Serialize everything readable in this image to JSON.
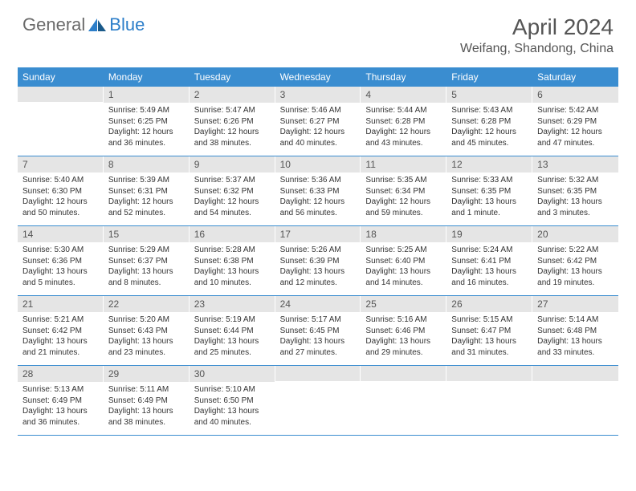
{
  "logo": {
    "general": "General",
    "blue": "Blue"
  },
  "title": "April 2024",
  "location": "Weifang, Shandong, China",
  "colors": {
    "header_bg": "#3a8dd0",
    "header_text": "#ffffff",
    "daynum_bg": "#e5e5e5",
    "text": "#333333",
    "divider": "#3a8dd0",
    "logo_gray": "#6a6a6a",
    "logo_blue": "#2c7ec9"
  },
  "day_headers": [
    "Sunday",
    "Monday",
    "Tuesday",
    "Wednesday",
    "Thursday",
    "Friday",
    "Saturday"
  ],
  "weeks": [
    [
      {
        "day": "",
        "sunrise": "",
        "sunset": "",
        "daylight": ""
      },
      {
        "day": "1",
        "sunrise": "Sunrise: 5:49 AM",
        "sunset": "Sunset: 6:25 PM",
        "daylight": "Daylight: 12 hours and 36 minutes."
      },
      {
        "day": "2",
        "sunrise": "Sunrise: 5:47 AM",
        "sunset": "Sunset: 6:26 PM",
        "daylight": "Daylight: 12 hours and 38 minutes."
      },
      {
        "day": "3",
        "sunrise": "Sunrise: 5:46 AM",
        "sunset": "Sunset: 6:27 PM",
        "daylight": "Daylight: 12 hours and 40 minutes."
      },
      {
        "day": "4",
        "sunrise": "Sunrise: 5:44 AM",
        "sunset": "Sunset: 6:28 PM",
        "daylight": "Daylight: 12 hours and 43 minutes."
      },
      {
        "day": "5",
        "sunrise": "Sunrise: 5:43 AM",
        "sunset": "Sunset: 6:28 PM",
        "daylight": "Daylight: 12 hours and 45 minutes."
      },
      {
        "day": "6",
        "sunrise": "Sunrise: 5:42 AM",
        "sunset": "Sunset: 6:29 PM",
        "daylight": "Daylight: 12 hours and 47 minutes."
      }
    ],
    [
      {
        "day": "7",
        "sunrise": "Sunrise: 5:40 AM",
        "sunset": "Sunset: 6:30 PM",
        "daylight": "Daylight: 12 hours and 50 minutes."
      },
      {
        "day": "8",
        "sunrise": "Sunrise: 5:39 AM",
        "sunset": "Sunset: 6:31 PM",
        "daylight": "Daylight: 12 hours and 52 minutes."
      },
      {
        "day": "9",
        "sunrise": "Sunrise: 5:37 AM",
        "sunset": "Sunset: 6:32 PM",
        "daylight": "Daylight: 12 hours and 54 minutes."
      },
      {
        "day": "10",
        "sunrise": "Sunrise: 5:36 AM",
        "sunset": "Sunset: 6:33 PM",
        "daylight": "Daylight: 12 hours and 56 minutes."
      },
      {
        "day": "11",
        "sunrise": "Sunrise: 5:35 AM",
        "sunset": "Sunset: 6:34 PM",
        "daylight": "Daylight: 12 hours and 59 minutes."
      },
      {
        "day": "12",
        "sunrise": "Sunrise: 5:33 AM",
        "sunset": "Sunset: 6:35 PM",
        "daylight": "Daylight: 13 hours and 1 minute."
      },
      {
        "day": "13",
        "sunrise": "Sunrise: 5:32 AM",
        "sunset": "Sunset: 6:35 PM",
        "daylight": "Daylight: 13 hours and 3 minutes."
      }
    ],
    [
      {
        "day": "14",
        "sunrise": "Sunrise: 5:30 AM",
        "sunset": "Sunset: 6:36 PM",
        "daylight": "Daylight: 13 hours and 5 minutes."
      },
      {
        "day": "15",
        "sunrise": "Sunrise: 5:29 AM",
        "sunset": "Sunset: 6:37 PM",
        "daylight": "Daylight: 13 hours and 8 minutes."
      },
      {
        "day": "16",
        "sunrise": "Sunrise: 5:28 AM",
        "sunset": "Sunset: 6:38 PM",
        "daylight": "Daylight: 13 hours and 10 minutes."
      },
      {
        "day": "17",
        "sunrise": "Sunrise: 5:26 AM",
        "sunset": "Sunset: 6:39 PM",
        "daylight": "Daylight: 13 hours and 12 minutes."
      },
      {
        "day": "18",
        "sunrise": "Sunrise: 5:25 AM",
        "sunset": "Sunset: 6:40 PM",
        "daylight": "Daylight: 13 hours and 14 minutes."
      },
      {
        "day": "19",
        "sunrise": "Sunrise: 5:24 AM",
        "sunset": "Sunset: 6:41 PM",
        "daylight": "Daylight: 13 hours and 16 minutes."
      },
      {
        "day": "20",
        "sunrise": "Sunrise: 5:22 AM",
        "sunset": "Sunset: 6:42 PM",
        "daylight": "Daylight: 13 hours and 19 minutes."
      }
    ],
    [
      {
        "day": "21",
        "sunrise": "Sunrise: 5:21 AM",
        "sunset": "Sunset: 6:42 PM",
        "daylight": "Daylight: 13 hours and 21 minutes."
      },
      {
        "day": "22",
        "sunrise": "Sunrise: 5:20 AM",
        "sunset": "Sunset: 6:43 PM",
        "daylight": "Daylight: 13 hours and 23 minutes."
      },
      {
        "day": "23",
        "sunrise": "Sunrise: 5:19 AM",
        "sunset": "Sunset: 6:44 PM",
        "daylight": "Daylight: 13 hours and 25 minutes."
      },
      {
        "day": "24",
        "sunrise": "Sunrise: 5:17 AM",
        "sunset": "Sunset: 6:45 PM",
        "daylight": "Daylight: 13 hours and 27 minutes."
      },
      {
        "day": "25",
        "sunrise": "Sunrise: 5:16 AM",
        "sunset": "Sunset: 6:46 PM",
        "daylight": "Daylight: 13 hours and 29 minutes."
      },
      {
        "day": "26",
        "sunrise": "Sunrise: 5:15 AM",
        "sunset": "Sunset: 6:47 PM",
        "daylight": "Daylight: 13 hours and 31 minutes."
      },
      {
        "day": "27",
        "sunrise": "Sunrise: 5:14 AM",
        "sunset": "Sunset: 6:48 PM",
        "daylight": "Daylight: 13 hours and 33 minutes."
      }
    ],
    [
      {
        "day": "28",
        "sunrise": "Sunrise: 5:13 AM",
        "sunset": "Sunset: 6:49 PM",
        "daylight": "Daylight: 13 hours and 36 minutes."
      },
      {
        "day": "29",
        "sunrise": "Sunrise: 5:11 AM",
        "sunset": "Sunset: 6:49 PM",
        "daylight": "Daylight: 13 hours and 38 minutes."
      },
      {
        "day": "30",
        "sunrise": "Sunrise: 5:10 AM",
        "sunset": "Sunset: 6:50 PM",
        "daylight": "Daylight: 13 hours and 40 minutes."
      },
      {
        "day": "",
        "sunrise": "",
        "sunset": "",
        "daylight": ""
      },
      {
        "day": "",
        "sunrise": "",
        "sunset": "",
        "daylight": ""
      },
      {
        "day": "",
        "sunrise": "",
        "sunset": "",
        "daylight": ""
      },
      {
        "day": "",
        "sunrise": "",
        "sunset": "",
        "daylight": ""
      }
    ]
  ]
}
